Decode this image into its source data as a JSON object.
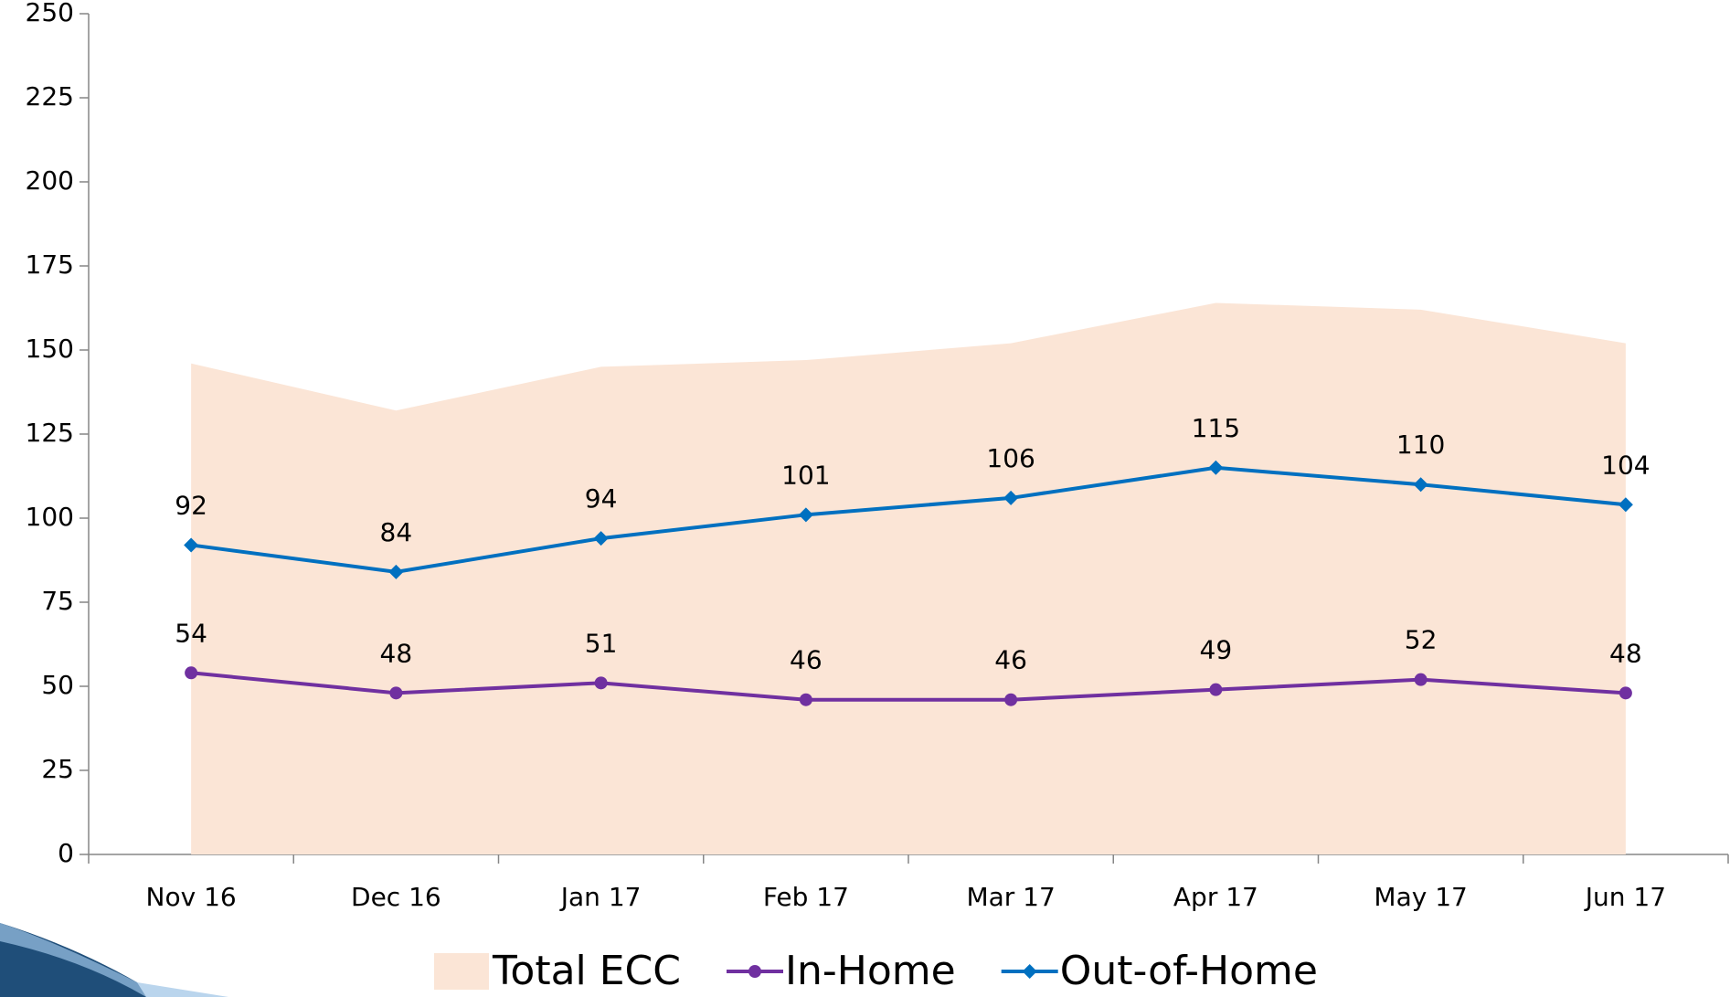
{
  "chart_data": {
    "type": "line",
    "categories": [
      "Nov 16",
      "Dec 16",
      "Jan 17",
      "Feb 17",
      "Mar 17",
      "Apr 17",
      "May 17",
      "Jun 17"
    ],
    "series": [
      {
        "name": "Total ECC",
        "type": "area",
        "color": "#fbe5d6",
        "values": [
          146,
          132,
          145,
          147,
          152,
          164,
          162,
          152
        ]
      },
      {
        "name": "In-Home",
        "type": "line",
        "marker": "circle",
        "color": "#7030a0",
        "values": [
          54,
          48,
          51,
          46,
          46,
          49,
          52,
          48
        ]
      },
      {
        "name": "Out-of-Home",
        "type": "line",
        "marker": "diamond",
        "color": "#0070c0",
        "values": [
          92,
          84,
          94,
          101,
          106,
          115,
          110,
          104
        ]
      }
    ],
    "ylim": [
      0,
      250
    ],
    "yticks": [
      0,
      25,
      50,
      75,
      100,
      125,
      150,
      175,
      200,
      225,
      250
    ],
    "legend": "bottom"
  }
}
